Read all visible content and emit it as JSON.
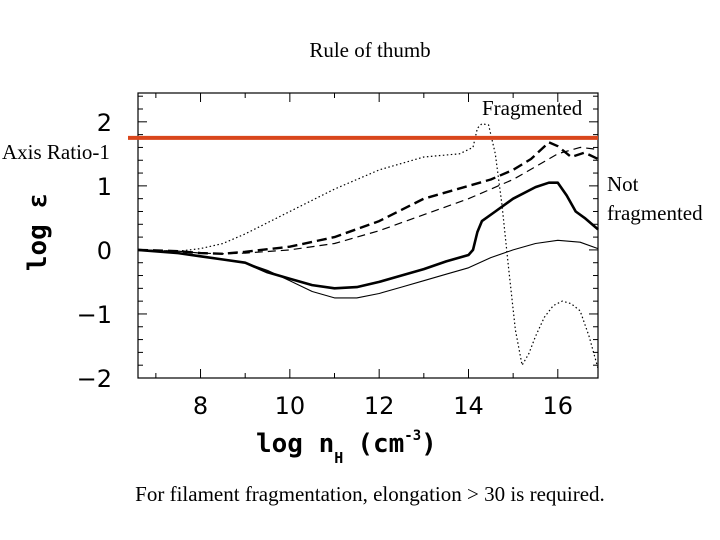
{
  "slide": {
    "title": "Rule of thumb",
    "label_fragmented": "Fragmented",
    "label_axis_ratio": "Axis Ratio-1",
    "label_not_line1": "Not",
    "label_not_line2": "fragmented",
    "caption": "For filament fragmentation, elongation > 30 is required."
  },
  "chart_data": {
    "type": "line",
    "title": "",
    "xlabel": "log n",
    "xlabel_subscript": "H",
    "xlabel_units": "(cm",
    "xlabel_units_exponent": "-3",
    "xlabel_units_close": ")",
    "ylabel": "log ε",
    "xlim": [
      6.6,
      16.9
    ],
    "ylim": [
      -2.0,
      2.45
    ],
    "x_ticks": [
      {
        "value": 8,
        "label": "8"
      },
      {
        "value": 10,
        "label": "10"
      },
      {
        "value": 12,
        "label": "12"
      },
      {
        "value": 14,
        "label": "14"
      },
      {
        "value": 16,
        "label": "16"
      }
    ],
    "y_ticks": [
      {
        "value": 2,
        "label": "2"
      },
      {
        "value": 1,
        "label": "1"
      },
      {
        "value": 0,
        "label": "0"
      },
      {
        "value": -1,
        "label": "−1"
      },
      {
        "value": -2,
        "label": "−2"
      }
    ],
    "threshold": {
      "y": 1.75,
      "label": "Axis Ratio-1",
      "color": "#d9461c"
    },
    "series": [
      {
        "name": "dotted",
        "style": "dotted",
        "x": [
          6.6,
          7.5,
          8.0,
          8.5,
          9.0,
          10.0,
          11.0,
          12.0,
          13.0,
          13.8,
          14.1,
          14.2,
          14.3,
          14.45,
          14.6,
          14.75,
          14.9,
          15.05,
          15.2,
          15.35,
          15.5,
          15.7,
          15.9,
          16.1,
          16.3,
          16.5,
          16.7,
          16.9
        ],
        "y": [
          0.0,
          -0.02,
          0.02,
          0.1,
          0.25,
          0.6,
          0.95,
          1.25,
          1.45,
          1.5,
          1.6,
          1.9,
          1.97,
          1.95,
          1.5,
          0.7,
          -0.3,
          -1.25,
          -1.8,
          -1.62,
          -1.35,
          -1.05,
          -0.87,
          -0.8,
          -0.84,
          -0.95,
          -1.35,
          -1.85
        ]
      },
      {
        "name": "thick-dashed",
        "style": "thick-dashed",
        "x": [
          6.6,
          7.5,
          8.0,
          8.5,
          9.0,
          10.0,
          11.0,
          12.0,
          13.0,
          14.0,
          14.5,
          15.0,
          15.4,
          15.8,
          16.0,
          16.3,
          16.6,
          16.9
        ],
        "y": [
          0.0,
          -0.02,
          -0.05,
          -0.06,
          -0.03,
          0.05,
          0.2,
          0.45,
          0.8,
          1.0,
          1.1,
          1.25,
          1.42,
          1.68,
          1.62,
          1.45,
          1.52,
          1.42
        ]
      },
      {
        "name": "thin-dashed",
        "style": "thin-dashed",
        "x": [
          6.6,
          7.5,
          8.0,
          8.5,
          9.0,
          10.0,
          11.0,
          12.0,
          13.0,
          14.0,
          14.5,
          15.0,
          15.5,
          16.0,
          16.5,
          16.9
        ],
        "y": [
          0.0,
          -0.02,
          -0.05,
          -0.06,
          -0.05,
          0.0,
          0.1,
          0.3,
          0.55,
          0.8,
          0.95,
          1.1,
          1.3,
          1.5,
          1.6,
          1.57
        ]
      },
      {
        "name": "thick-solid",
        "style": "thick-solid",
        "x": [
          6.6,
          7.5,
          8.0,
          8.5,
          9.0,
          9.5,
          10.0,
          10.5,
          11.0,
          11.5,
          12.0,
          12.5,
          13.0,
          13.5,
          14.0,
          14.1,
          14.2,
          14.3,
          14.6,
          15.0,
          15.5,
          15.8,
          16.0,
          16.2,
          16.4,
          16.6,
          16.9
        ],
        "y": [
          0.0,
          -0.05,
          -0.1,
          -0.15,
          -0.2,
          -0.35,
          -0.45,
          -0.55,
          -0.6,
          -0.58,
          -0.5,
          -0.4,
          -0.3,
          -0.18,
          -0.08,
          0.0,
          0.28,
          0.45,
          0.6,
          0.8,
          0.98,
          1.05,
          1.05,
          0.85,
          0.6,
          0.5,
          0.32
        ]
      },
      {
        "name": "thin-solid",
        "style": "thin-solid",
        "x": [
          6.6,
          7.5,
          8.0,
          8.5,
          9.0,
          9.5,
          10.0,
          10.5,
          11.0,
          11.5,
          12.0,
          12.5,
          13.0,
          13.5,
          14.0,
          14.5,
          15.0,
          15.5,
          16.0,
          16.5,
          16.9
        ],
        "y": [
          0.0,
          -0.05,
          -0.1,
          -0.15,
          -0.2,
          -0.32,
          -0.48,
          -0.65,
          -0.75,
          -0.75,
          -0.68,
          -0.58,
          -0.48,
          -0.38,
          -0.28,
          -0.12,
          0.0,
          0.1,
          0.15,
          0.12,
          0.02
        ]
      }
    ]
  }
}
